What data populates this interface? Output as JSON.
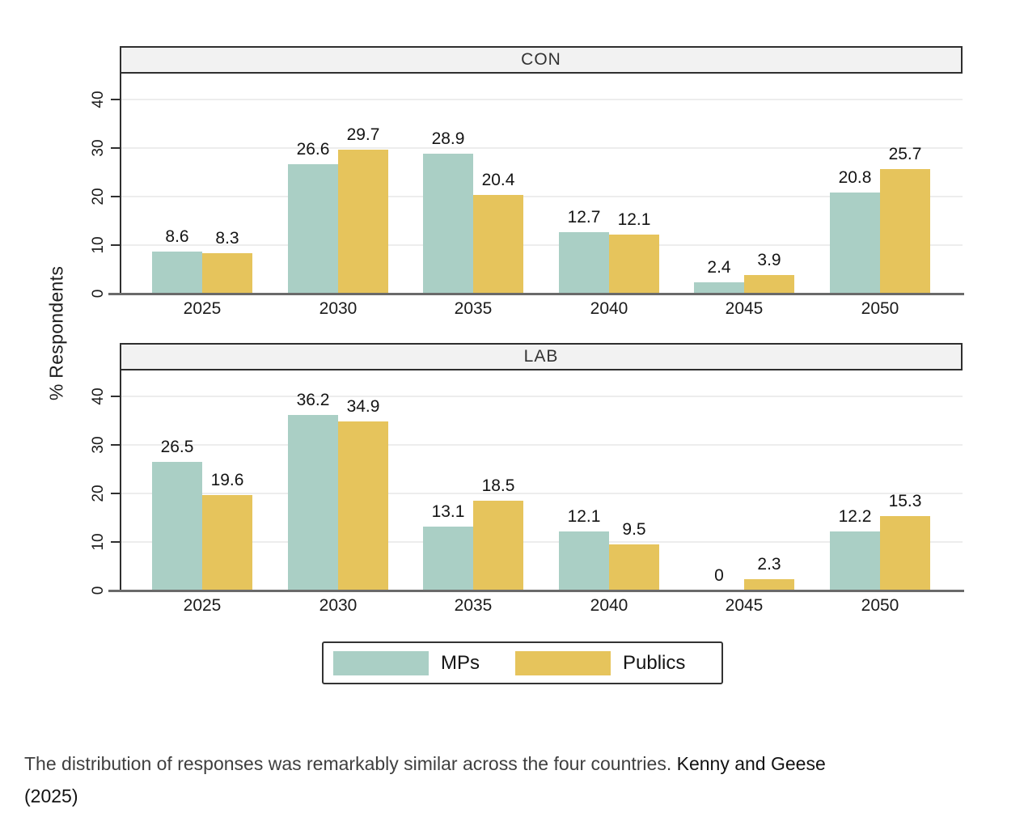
{
  "ylabel": "% Respondents",
  "colors": {
    "mps": "#aacfc5",
    "publics": "#e6c45c",
    "header_bg": "#f2f2f2",
    "frame": "#2f2f2f",
    "axis_line": "#6a6a6a",
    "grid": "#ededed",
    "text": "#1b1b1b"
  },
  "chart_data": [
    {
      "type": "bar",
      "title": "CON",
      "categories": [
        "2025",
        "2030",
        "2035",
        "2040",
        "2045",
        "2050"
      ],
      "series": [
        {
          "name": "MPs",
          "color": "#aacfc5",
          "values": [
            8.6,
            26.6,
            28.9,
            12.7,
            2.4,
            20.8
          ]
        },
        {
          "name": "Publics",
          "color": "#e6c45c",
          "values": [
            8.3,
            29.7,
            20.4,
            12.1,
            3.9,
            25.7
          ]
        }
      ],
      "xlabel": "",
      "ylabel": "% Respondents",
      "ylim": [
        0,
        45
      ],
      "yticks": [
        0,
        10,
        20,
        30,
        40
      ],
      "grid": true,
      "legend_position": "bottom"
    },
    {
      "type": "bar",
      "title": "LAB",
      "categories": [
        "2025",
        "2030",
        "2035",
        "2040",
        "2045",
        "2050"
      ],
      "series": [
        {
          "name": "MPs",
          "color": "#aacfc5",
          "values": [
            26.5,
            36.2,
            13.1,
            12.1,
            0,
            12.2
          ]
        },
        {
          "name": "Publics",
          "color": "#e6c45c",
          "values": [
            19.6,
            34.9,
            18.5,
            9.5,
            2.3,
            15.3
          ]
        }
      ],
      "xlabel": "",
      "ylabel": "% Respondents",
      "ylim": [
        0,
        45
      ],
      "yticks": [
        0,
        10,
        20,
        30,
        40
      ],
      "grid": true,
      "legend_position": "bottom"
    }
  ],
  "legend": {
    "items": [
      {
        "label": "MPs",
        "color": "#aacfc5"
      },
      {
        "label": "Publics",
        "color": "#e6c45c"
      }
    ]
  },
  "caption": {
    "main": "The distribution of responses was remarkably similar across the four countries.",
    "source_name": "Kenny and Geese",
    "source_year": "(2025)"
  }
}
